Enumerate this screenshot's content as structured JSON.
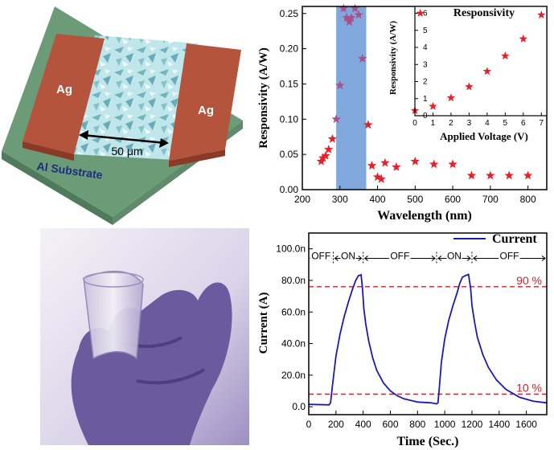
{
  "device": {
    "electrode_left": "Ag",
    "electrode_right": "Ag",
    "gap_label": "50 μm",
    "substrate_label": "Al Substrate",
    "colors": {
      "substrate": "#6c9b78",
      "electrode": "#b5543d",
      "film": "#8fd0d8"
    }
  },
  "chart_data": [
    {
      "type": "scatter",
      "xlabel": "Wavelength (nm)",
      "ylabel": "Responsivity (A/W)",
      "xlim": [
        200,
        850
      ],
      "ylim": [
        0,
        0.26
      ],
      "xticks": [
        200,
        300,
        400,
        500,
        600,
        700,
        800
      ],
      "yticks": [
        0.0,
        0.05,
        0.1,
        0.15,
        0.2,
        0.25
      ],
      "highlight_band": {
        "x": [
          290,
          370
        ],
        "color": "#80a8dc"
      },
      "series": [
        {
          "marker": "star",
          "color": "#e8202a",
          "color_in_band": "#a8508c",
          "points": [
            [
              250,
              0.04
            ],
            [
              255,
              0.045
            ],
            [
              262,
              0.048
            ],
            [
              270,
              0.057
            ],
            [
              280,
              0.072
            ],
            [
              290,
              0.1
            ],
            [
              300,
              0.148
            ],
            [
              310,
              0.257
            ],
            [
              318,
              0.244
            ],
            [
              325,
              0.238
            ],
            [
              330,
              0.244
            ],
            [
              340,
              0.257
            ],
            [
              350,
              0.248
            ],
            [
              360,
              0.186
            ],
            [
              375,
              0.092
            ],
            [
              385,
              0.034
            ],
            [
              400,
              0.018
            ],
            [
              410,
              0.015
            ],
            [
              420,
              0.038
            ],
            [
              450,
              0.032
            ],
            [
              500,
              0.04
            ],
            [
              550,
              0.036
            ],
            [
              600,
              0.036
            ],
            [
              650,
              0.02
            ],
            [
              700,
              0.02
            ],
            [
              750,
              0.02
            ],
            [
              800,
              0.02
            ]
          ]
        }
      ]
    },
    {
      "type": "scatter",
      "title": "Responsivity",
      "xlabel": "Applied Voltage (V)",
      "ylabel": "Responsivity (A/W)",
      "xlim": [
        0,
        7.3
      ],
      "ylim": [
        0,
        6.4
      ],
      "xticks": [
        0,
        1,
        2,
        3,
        4,
        5,
        6,
        7
      ],
      "yticks": [
        0,
        1,
        2,
        3,
        4,
        5,
        6
      ],
      "series": [
        {
          "marker": "star",
          "color": "#e8202a",
          "points": [
            [
              0,
              0.3
            ],
            [
              0.3,
              6.0
            ],
            [
              1,
              0.55
            ],
            [
              2,
              1.05
            ],
            [
              3,
              1.7
            ],
            [
              4,
              2.6
            ],
            [
              5,
              3.5
            ],
            [
              6,
              4.5
            ],
            [
              7,
              5.9
            ]
          ]
        }
      ]
    },
    {
      "type": "line",
      "xlabel": "Time (Sec.)",
      "ylabel": "Current (A)",
      "xlim": [
        0,
        1750
      ],
      "ylim": [
        -5,
        110
      ],
      "xticks": [
        0,
        200,
        400,
        600,
        800,
        1000,
        1200,
        1400,
        1600
      ],
      "yticks": [
        0.0,
        20.0,
        40.0,
        60.0,
        80.0,
        100.0
      ],
      "ytick_labels": [
        "0.0",
        "20.0n",
        "40.0n",
        "60.0n",
        "80.0n",
        "100.0n"
      ],
      "legend": {
        "position": "top-right",
        "label": "Current"
      },
      "series": [
        {
          "name": "Current",
          "color": "#1a1ab8",
          "points": [
            [
              0,
              1.5
            ],
            [
              150,
              1.2
            ],
            [
              160,
              2.5
            ],
            [
              175,
              14
            ],
            [
              200,
              32
            ],
            [
              230,
              46
            ],
            [
              260,
              57
            ],
            [
              290,
              66
            ],
            [
              320,
              74
            ],
            [
              345,
              80
            ],
            [
              365,
              83
            ],
            [
              385,
              83.5
            ],
            [
              395,
              75
            ],
            [
              405,
              62
            ],
            [
              420,
              52
            ],
            [
              440,
              42
            ],
            [
              470,
              31
            ],
            [
              500,
              23
            ],
            [
              550,
              15
            ],
            [
              600,
              10
            ],
            [
              650,
              7
            ],
            [
              700,
              5
            ],
            [
              800,
              3
            ],
            [
              900,
              2.5
            ],
            [
              940,
              1.8
            ],
            [
              950,
              2.5
            ],
            [
              960,
              12
            ],
            [
              975,
              28
            ],
            [
              1000,
              43
            ],
            [
              1030,
              55
            ],
            [
              1060,
              64
            ],
            [
              1090,
              72
            ],
            [
              1110,
              78
            ],
            [
              1130,
              82
            ],
            [
              1150,
              83
            ],
            [
              1175,
              83.8
            ],
            [
              1190,
              75
            ],
            [
              1200,
              64
            ],
            [
              1220,
              53
            ],
            [
              1240,
              44
            ],
            [
              1280,
              33
            ],
            [
              1320,
              25
            ],
            [
              1380,
              17
            ],
            [
              1450,
              11
            ],
            [
              1550,
              6
            ],
            [
              1650,
              3.5
            ],
            [
              1750,
              2.5
            ]
          ]
        }
      ],
      "reference_lines": [
        {
          "y": 76,
          "label": "90 %",
          "color": "#c8202a"
        },
        {
          "y": 8,
          "label": "10 %",
          "color": "#c8202a"
        }
      ],
      "state_annotations": [
        {
          "label": "OFF",
          "x_from": 0,
          "x_to": 180
        },
        {
          "label": "ON",
          "x_from": 180,
          "x_to": 400
        },
        {
          "label": "OFF",
          "x_from": 400,
          "x_to": 940
        },
        {
          "label": "ON",
          "x_from": 940,
          "x_to": 1200
        },
        {
          "label": "OFF",
          "x_from": 1200,
          "x_to": 1750
        }
      ]
    }
  ],
  "photo": {
    "description_icon": "hand-holding-flexible-film-photo",
    "tint": "#6b5a9e"
  }
}
